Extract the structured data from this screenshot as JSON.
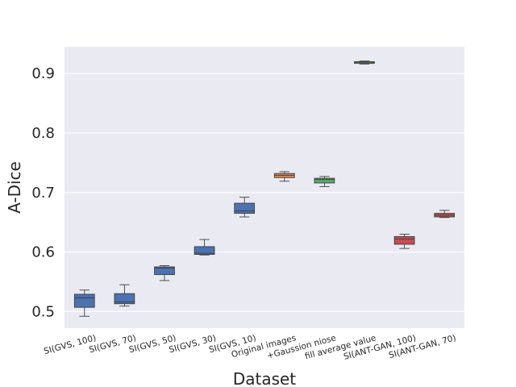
{
  "chart_data": {
    "type": "box",
    "title": "",
    "xlabel": "Dataset",
    "ylabel": "A-Dice",
    "ylim": [
      0.472,
      0.945
    ],
    "yticks": [
      0.5,
      0.6,
      0.7,
      0.8,
      0.9
    ],
    "ytick_labels": [
      "0.5",
      "0.6",
      "0.7",
      "0.8",
      "0.9"
    ],
    "grid": true,
    "legend": "none",
    "categories": [
      "SI(GVS, 100)",
      "SI(GVS, 70)",
      "SI(GVS, 50)",
      "SI(GVS, 30)",
      "SI(GVS, 10)",
      "Original images",
      "+Gaussion niose",
      "fill average value",
      "SI(ANT-GAN, 100)",
      "SI(ANT-GAN, 70)"
    ],
    "boxes": [
      {
        "min": 0.492,
        "q1": 0.507,
        "median": 0.523,
        "q3": 0.529,
        "max": 0.536,
        "color": "#4c72b0"
      },
      {
        "min": 0.509,
        "q1": 0.513,
        "median": 0.516,
        "q3": 0.53,
        "max": 0.545,
        "color": "#4c72b0"
      },
      {
        "min": 0.552,
        "q1": 0.562,
        "median": 0.573,
        "q3": 0.575,
        "max": 0.577,
        "color": "#4c72b0"
      },
      {
        "min": 0.595,
        "q1": 0.596,
        "median": 0.598,
        "q3": 0.609,
        "max": 0.621,
        "color": "#4c72b0"
      },
      {
        "min": 0.659,
        "q1": 0.665,
        "median": 0.669,
        "q3": 0.682,
        "max": 0.692,
        "color": "#4c72b0"
      },
      {
        "min": 0.719,
        "q1": 0.725,
        "median": 0.729,
        "q3": 0.732,
        "max": 0.735,
        "color": "#dd8452"
      },
      {
        "min": 0.71,
        "q1": 0.716,
        "median": 0.722,
        "q3": 0.724,
        "max": 0.727,
        "color": "#55a868"
      },
      {
        "min": 0.916,
        "q1": 0.917,
        "median": 0.919,
        "q3": 0.92,
        "max": 0.921,
        "color": "#55a868"
      },
      {
        "min": 0.606,
        "q1": 0.613,
        "median": 0.622,
        "q3": 0.626,
        "max": 0.63,
        "color": "#c44e52"
      },
      {
        "min": 0.658,
        "q1": 0.659,
        "median": 0.662,
        "q3": 0.665,
        "max": 0.67,
        "color": "#c44e52"
      }
    ],
    "colors": {
      "plot_background": "#eaeaf2",
      "grid": "#ffffff",
      "text": "#262626",
      "whisker": "#3d3d3d"
    }
  }
}
